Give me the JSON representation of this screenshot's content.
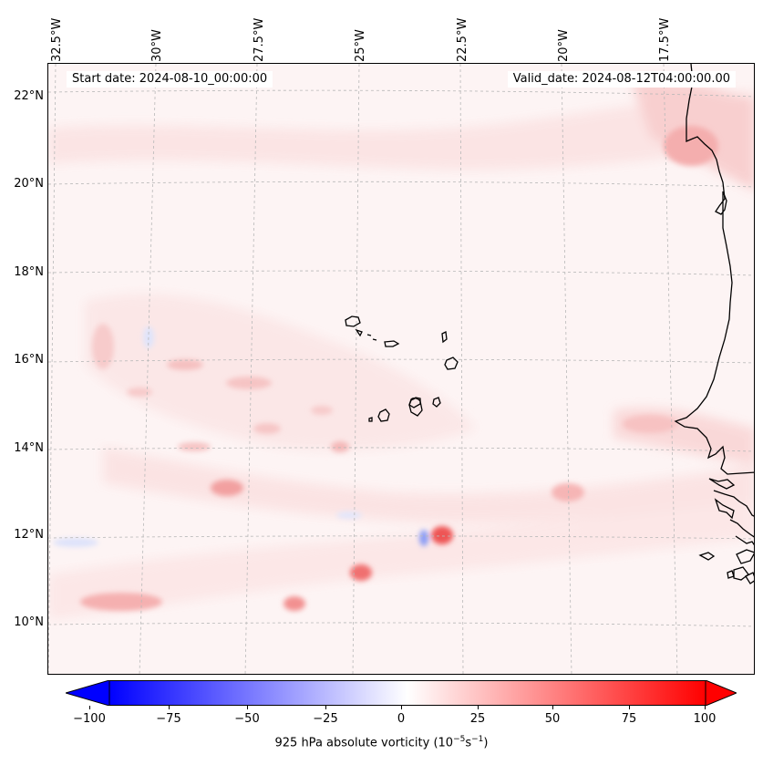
{
  "map": {
    "start_date": "Start date: 2024-08-10_00:00:00",
    "valid_date": "Valid_date: 2024-08-12T04:00:00.00",
    "lon_labels": [
      "32.5°W",
      "30°W",
      "27.5°W",
      "25°W",
      "22.5°W",
      "20°W",
      "17.5°W"
    ],
    "lat_labels": [
      "22°N",
      "20°N",
      "18°N",
      "16°N",
      "14°N",
      "12°N",
      "10°N"
    ],
    "colors": {
      "positive": "#ff0000",
      "negative": "#0000ff",
      "coast": "#000000"
    }
  },
  "colorbar": {
    "label": "925 hPa absolute vorticity (10",
    "label_sup1": "−5",
    "label_mid": "s",
    "label_sup2": "−1",
    "label_end": ")",
    "ticks": [
      "−100",
      "−75",
      "−50",
      "−25",
      "0",
      "25",
      "50",
      "75",
      "100"
    ],
    "min": -100,
    "max": 100
  }
}
